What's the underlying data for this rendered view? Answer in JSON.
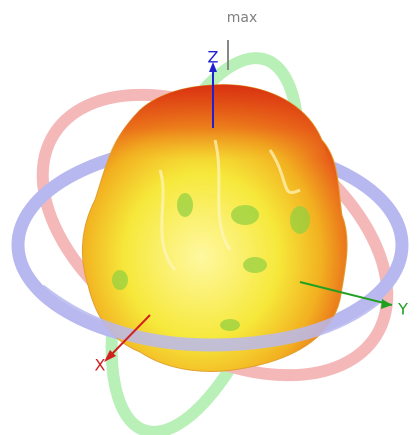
{
  "labels": {
    "max": "max",
    "z": "Z",
    "y": "Y",
    "x": "X"
  }
}
